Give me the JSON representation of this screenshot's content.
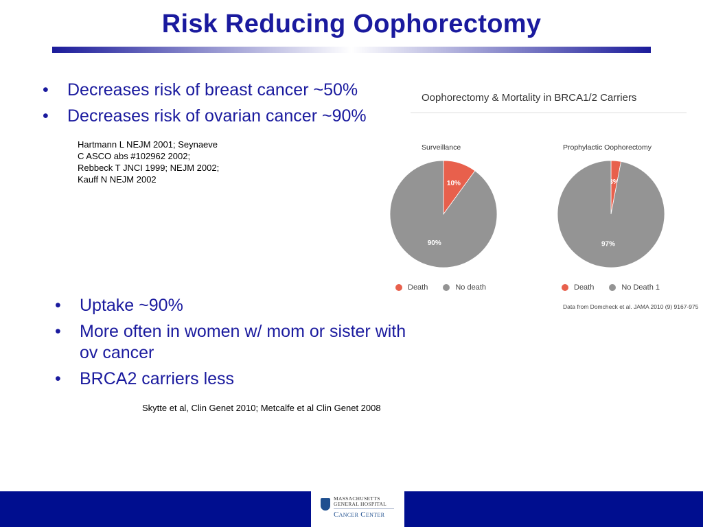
{
  "slide": {
    "title": "Risk Reducing Oophorectomy",
    "bullets_top": [
      "Decreases risk of breast cancer ~50%",
      "Decreases risk of ovarian cancer ~90%"
    ],
    "citation_top": [
      "Hartmann L NEJM 2001; Seynaeve",
      "C ASCO abs #102962 2002;",
      "Rebbeck T JNCI 1999; NEJM 2002;",
      "Kauff N NEJM 2002"
    ],
    "bullets_bottom": [
      "Uptake ~90%",
      "More often in women w/ mom or sister with ov cancer",
      "BRCA2 carriers less"
    ],
    "citation_bottom": "Skytte et al, Clin Genet 2010; Metcalfe et al Clin Genet 2008"
  },
  "logo": {
    "line1": "MASSACHUSETTS",
    "line2": "GENERAL HOSPITAL",
    "line3": "Cancer Center"
  },
  "colors": {
    "title_blue": "#1a1a9e",
    "footer_blue": "#000e8f",
    "death": "#e8604c",
    "no_death": "#949494"
  },
  "chart_header": "Oophorectomy & Mortality in BRCA1/2 Carriers",
  "chart_source": "Data from Domcheck et al. JAMA 2010 (9) 9167-975",
  "chart_data": [
    {
      "type": "pie",
      "title": "Surveillance",
      "labels": [
        "Death",
        "No death"
      ],
      "values": [
        10,
        90
      ],
      "value_labels": [
        "10%",
        "90%"
      ],
      "colors": [
        "#e8604c",
        "#949494"
      ],
      "legend": "bottom"
    },
    {
      "type": "pie",
      "title": "Prophylactic Oophorectomy",
      "labels": [
        "Death",
        "No Death 1"
      ],
      "values": [
        3,
        97
      ],
      "value_labels": [
        "3%",
        "97%"
      ],
      "colors": [
        "#e8604c",
        "#949494"
      ],
      "legend": "bottom"
    }
  ]
}
